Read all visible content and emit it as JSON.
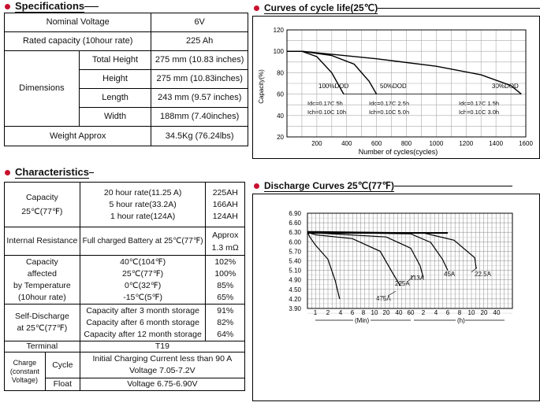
{
  "specs": {
    "title": "Specifications",
    "rows": {
      "nominal_voltage": {
        "label": "Nominal Voltage",
        "value": "6V"
      },
      "rated_capacity": {
        "label": "Rated capacity (10hour rate)",
        "value": "225 Ah"
      },
      "dimensions": {
        "label": "Dimensions",
        "total_height": {
          "label": "Total Height",
          "value": "275 mm (10.83 inches)"
        },
        "height": {
          "label": "Height",
          "value": "275 mm (10.83inches)"
        },
        "length": {
          "label": "Length",
          "value": "243 mm (9.57 inches)"
        },
        "width": {
          "label": "Width",
          "value": "188mm (7.40inches)"
        }
      },
      "weight": {
        "label": "Weight Approx",
        "value": "34.5Kg (76.24lbs)"
      }
    }
  },
  "cycle_chart": {
    "title": "Curves of cycle life(25℃)",
    "xlabel": "Number of cycles(cycles)",
    "ylabel": "Capacity(%)",
    "y_ticks": [
      "120",
      "100",
      "80",
      "60",
      "40",
      "20"
    ],
    "x_ticks": [
      "200",
      "400",
      "600",
      "800",
      "1000",
      "1200",
      "1400",
      "1600"
    ],
    "curve_labels": {
      "dod100": "100%DOD",
      "dod50": "50%DOD",
      "dod30": "30%DOD"
    },
    "notes": {
      "a1": "Idc=0.17C 5h",
      "a2": "Ich=0.10C 10h",
      "b1": "Idc=0.17C 2.5h",
      "b2": "Ich=0.10C 5.0h",
      "c1": "Idc=0.17C 1.5h",
      "c2": "Ich=0.10C 3.0h"
    }
  },
  "chart_data": [
    {
      "type": "line",
      "title": "Curves of cycle life(25℃)",
      "xlabel": "Number of cycles(cycles)",
      "ylabel": "Capacity(%)",
      "xlim": [
        0,
        1600
      ],
      "ylim": [
        20,
        120
      ],
      "grid": true,
      "series": [
        {
          "name": "100%DOD",
          "x": [
            0,
            100,
            200,
            300,
            380
          ],
          "y": [
            100,
            100,
            95,
            80,
            60
          ]
        },
        {
          "name": "50%DOD",
          "x": [
            0,
            100,
            300,
            450,
            550,
            600
          ],
          "y": [
            100,
            100,
            96,
            88,
            72,
            60
          ]
        },
        {
          "name": "30%DOD",
          "x": [
            0,
            100,
            600,
            1000,
            1300,
            1500,
            1570
          ],
          "y": [
            100,
            100,
            93,
            86,
            78,
            68,
            60
          ]
        }
      ]
    },
    {
      "type": "line",
      "title": "Discharge Curves 25℃(77℉)",
      "xlabel": "",
      "ylabel": "",
      "x_ticks": [
        "1",
        "2",
        "4",
        "6",
        "8",
        "10",
        "20",
        "40",
        "60",
        "2",
        "4",
        "6",
        "8",
        "10",
        "20",
        "40"
      ],
      "x_units": [
        "(Min)",
        "(h)"
      ],
      "ylim": [
        3.9,
        6.9
      ],
      "grid": true,
      "series": [
        {
          "name": "475A",
          "x_min": [
            0,
            0.3,
            1,
            2,
            3,
            3.8
          ],
          "y": [
            6.3,
            6.15,
            5.9,
            5.45,
            4.85,
            4.2
          ]
        },
        {
          "name": "225A",
          "x_min": [
            0,
            1,
            6,
            14,
            28,
            42
          ],
          "y": [
            6.3,
            6.22,
            6.1,
            5.7,
            5.05,
            4.65
          ]
        },
        {
          "name": "113A",
          "x_min": [
            0,
            1,
            20,
            60,
            100,
            120
          ],
          "y": [
            6.32,
            6.28,
            6.15,
            5.8,
            5.25,
            4.95
          ]
        },
        {
          "name": "45A",
          "x_min": [
            0,
            1,
            60,
            180,
            300,
            360
          ],
          "y": [
            6.32,
            6.3,
            6.25,
            5.98,
            5.45,
            5.1
          ]
        },
        {
          "name": "22.5A",
          "x_min": [
            0,
            1,
            120,
            420,
            720,
            780
          ],
          "y": [
            6.32,
            6.32,
            6.28,
            6.05,
            5.5,
            5.15
          ]
        }
      ]
    }
  ],
  "discharge_chart": {
    "title": "Discharge Curves 25℃(77℉)",
    "y_ticks": [
      "6.90",
      "6.60",
      "6.30",
      "6.00",
      "5.70",
      "5.40",
      "5.10",
      "4.90",
      "4.50",
      "4.20",
      "3.90"
    ],
    "x_ticks": [
      "1",
      "2",
      "4",
      "6",
      "8",
      "10",
      "20",
      "40",
      "60",
      "2",
      "4",
      "6",
      "8",
      "10",
      "20",
      "40"
    ],
    "min_label": "(Min)",
    "h_label": "(h)",
    "curve_labels": {
      "a475": "475A",
      "a225": "225A",
      "a113": "113A",
      "a45": "45A",
      "a22": "22.5A"
    }
  },
  "characteristics": {
    "title": "Characteristics",
    "capacity": {
      "label1": "Capacity",
      "label2": "25℃(77℉)",
      "r1": {
        "text": "20 hour rate(11.25 A)",
        "value": "225AH"
      },
      "r2": {
        "text": "5 hour rate(33.2A)",
        "value": "166AH"
      },
      "r3": {
        "text": "1 hour rate(124A)",
        "value": "124AH"
      }
    },
    "internal_resistance": {
      "label": "Internal Resistance",
      "condition": "Full charged Battery at 25℃(77℉)",
      "value1": "Approx",
      "value2": "1.3 mΩ"
    },
    "temp": {
      "label1": "Capacity",
      "label2": "affected",
      "label3": "by Temperature",
      "label4": "(10hour rate)",
      "rows": [
        {
          "t": "40℃(104℉)",
          "v": "102%"
        },
        {
          "t": "25℃(77℉)",
          "v": "100%"
        },
        {
          "t": "0℃(32℉)",
          "v": "85%"
        },
        {
          "t": "-15℃(5℉)",
          "v": "65%"
        }
      ]
    },
    "self_discharge": {
      "label1": "Self-Discharge",
      "label2": "at 25℃(77℉)",
      "rows": [
        {
          "t": "Capacity after 3 month storage",
          "v": "91%"
        },
        {
          "t": "Capacity after 6 month storage",
          "v": "82%"
        },
        {
          "t": "Capacity after 12 month storage",
          "v": "64%"
        }
      ]
    },
    "terminal": {
      "label": "Terminal",
      "value": "T19"
    },
    "charge": {
      "label1": "Charge",
      "label2": "(constant",
      "label3": "Voltage)",
      "cycle": {
        "label": "Cycle",
        "line1": "Initial Charging Current less than 90 A",
        "line2": "Voltage 7.05-7.2V"
      },
      "float": {
        "label": "Float",
        "value": "Voltage 6.75-6.90V"
      }
    }
  }
}
